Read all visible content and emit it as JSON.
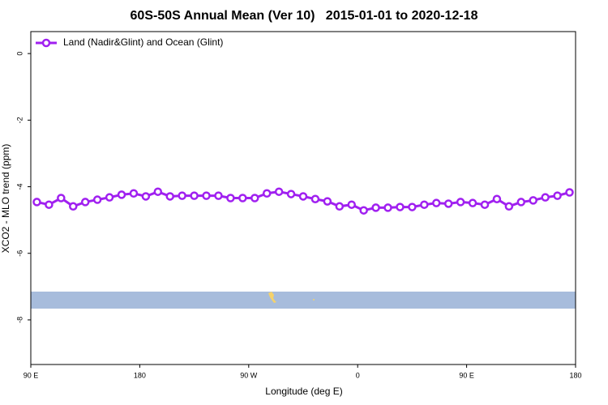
{
  "chart_data": {
    "type": "line",
    "title": "60S-50S Annual Mean (Ver 10)   2015-01-01 to 2020-12-18",
    "x_label": "Longitude (deg E)",
    "y_label": "XCO2 - MLO trend (ppm)",
    "xlim": [
      90,
      540
    ],
    "ylim": [
      -9.34,
      0.66
    ],
    "xticks": [
      {
        "value": 90,
        "label": "90 E"
      },
      180,
      {
        "value": 270,
        "label": "90 W"
      },
      {
        "value": 360,
        "label": "0"
      },
      {
        "value": 450,
        "label": "90 E"
      },
      {
        "value": 540,
        "label": "180"
      }
    ],
    "yticks": [
      0,
      -2,
      -4,
      -6,
      -8
    ],
    "legend": "top-left",
    "x": [
      95,
      105,
      115,
      125,
      135,
      145,
      155,
      165,
      175,
      185,
      195,
      205,
      215,
      225,
      235,
      245,
      255,
      265,
      275,
      285,
      295,
      305,
      315,
      325,
      335,
      345,
      355,
      365,
      375,
      385,
      395,
      405,
      415,
      425,
      435,
      445,
      455,
      465,
      475,
      485,
      495,
      505,
      515,
      525,
      535
    ],
    "series": [
      {
        "name": "Land (Nadir&Glint) and Ocean (Glint)",
        "color": "#a020f0",
        "values": [
          -4.46,
          -4.54,
          -4.34,
          -4.59,
          -4.46,
          -4.39,
          -4.32,
          -4.24,
          -4.2,
          -4.29,
          -4.15,
          -4.29,
          -4.27,
          -4.27,
          -4.27,
          -4.27,
          -4.34,
          -4.34,
          -4.34,
          -4.2,
          -4.15,
          -4.22,
          -4.29,
          -4.37,
          -4.44,
          -4.59,
          -4.54,
          -4.71,
          -4.63,
          -4.63,
          -4.61,
          -4.61,
          -4.54,
          -4.49,
          -4.51,
          -4.46,
          -4.49,
          -4.54,
          -4.37,
          -4.59,
          -4.46,
          -4.41,
          -4.32,
          -4.27,
          -4.17
        ]
      }
    ]
  }
}
